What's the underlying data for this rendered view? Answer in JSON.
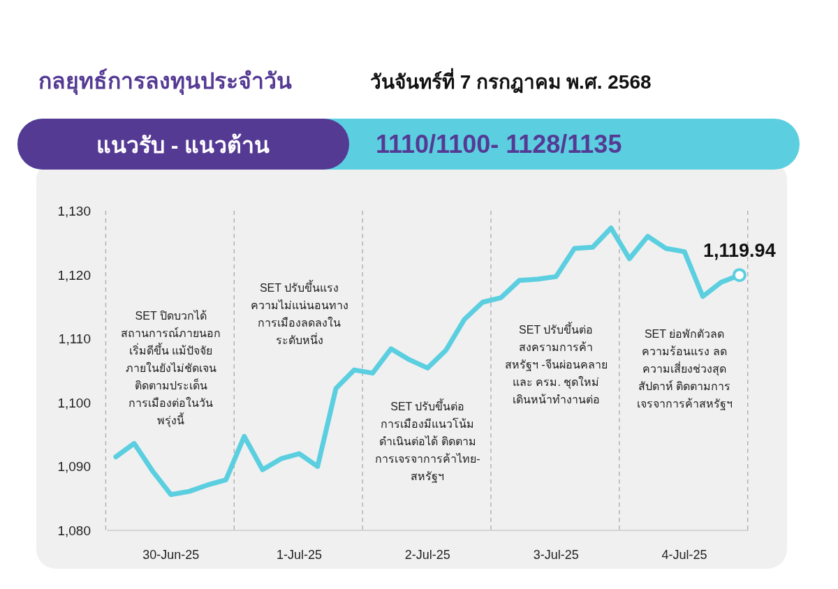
{
  "chart_data": {
    "type": "line",
    "title": "กลยุทธ์การลงทุนประจำวัน",
    "subtitle": "วันจันทร์ที่ 7 กรกฎาคม พ.ศ. 2568",
    "annotations": [
      "แนวรับ - แนวต้าน",
      "1110/1100- 1128/1135",
      "SET ปิดบวกได้\nสถานการณ์ภายนอก\nเริ่มดีขึ้น แม้ปัจจัย\nภายในยังไม่ชัดเจน\nติดตามประเด็น\nการเมืองต่อในวัน\nพรุ่งนี้",
      "SET ปรับขึ้นแรง\nความไม่แน่นอนทาง\nการเมืองลดลงใน\nระดับหนึ่ง",
      "SET ปรับขึ้นต่อ\nการเมืองมีแนวโน้ม\nดำเนินต่อได้ ติดตาม\nการเจรจาการค้าไทย-\nสหรัฐฯ",
      "SET ปรับขึ้นต่อ\nสงครามการค้า\nสหรัฐฯ -จีนผ่อนคลาย\nและ ครม. ชุดใหม่\nเดินหน้าทำงานต่อ",
      "SET ย่อพักตัวลด\nความร้อนแรง ลด\nความเสี่ยงช่วงสุด\nสัปดาห์ ติดตามการ\nเจรจาการค้าสหรัฐฯ",
      {
        "text": "1,119.94",
        "y": 1119.94
      }
    ],
    "categories": [
      null,
      null,
      null,
      "30-Jun-25",
      null,
      null,
      null,
      null,
      null,
      null,
      "1-Jul-25",
      null,
      null,
      null,
      null,
      null,
      null,
      "2-Jul-25",
      null,
      null,
      null,
      null,
      null,
      null,
      "3-Jul-25",
      null,
      null,
      null,
      null,
      null,
      null,
      "4-Jul-25",
      null,
      null,
      null
    ],
    "ylim": [
      1080,
      1130
    ],
    "yticks": [
      {
        "value": 1080,
        "label": "1,080"
      },
      {
        "value": 1090,
        "label": "1,090"
      },
      {
        "value": 1100,
        "label": "1,100"
      },
      {
        "value": 1110,
        "label": "1,110"
      },
      {
        "value": 1120,
        "label": "1,120"
      },
      {
        "value": 1130,
        "label": "1,130"
      }
    ],
    "series": [
      {
        "color": "#5bcfe0",
        "values": [
          1091.5,
          1093.6,
          1089.3,
          1085.6,
          1086.1,
          1087.1,
          1087.9,
          1094.7,
          1089.5,
          1091.2,
          1092.0,
          1090.0,
          1102.2,
          1105.1,
          1104.6,
          1108.4,
          1106.7,
          1105.4,
          1108.2,
          1113.0,
          1115.7,
          1116.4,
          1119.1,
          1119.3,
          1119.7,
          1124.1,
          1124.3,
          1127.3,
          1122.5,
          1126.0,
          1124.1,
          1123.6,
          1116.6,
          1118.8,
          1119.94
        ]
      }
    ],
    "grid": false,
    "marker": "none",
    "line_style": "solid"
  }
}
